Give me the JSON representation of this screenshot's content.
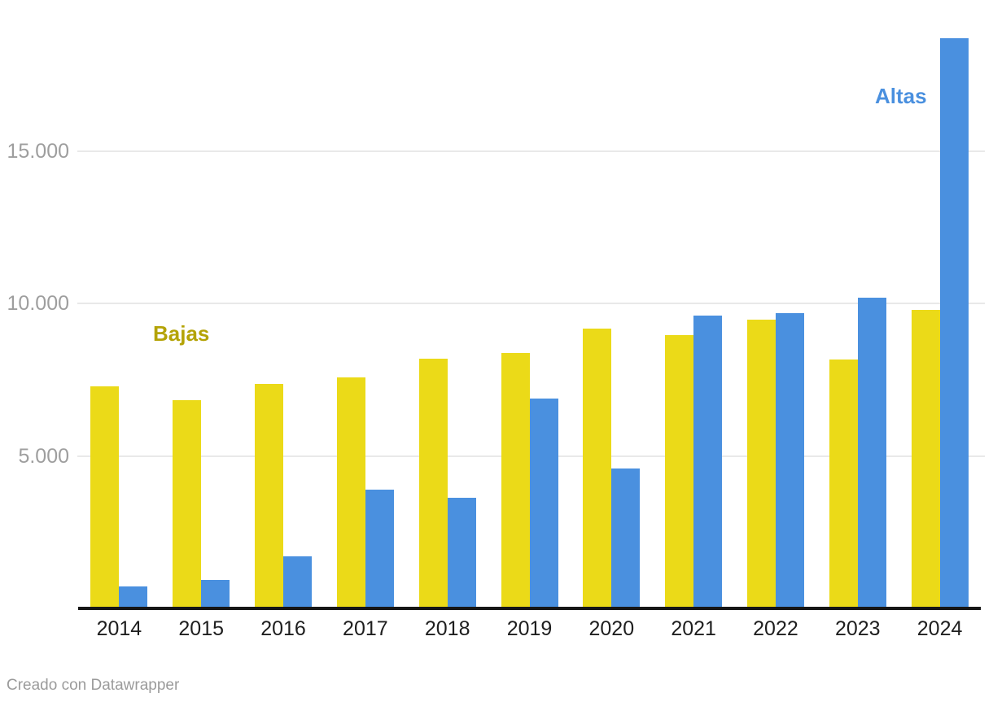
{
  "chart_data": {
    "type": "bar",
    "title": "",
    "xlabel": "",
    "ylabel": "",
    "categories": [
      "2014",
      "2015",
      "2016",
      "2017",
      "2018",
      "2019",
      "2020",
      "2021",
      "2022",
      "2023",
      "2024"
    ],
    "series": [
      {
        "name": "Bajas",
        "color": "#ebda18",
        "label_color": "#b4a306",
        "values": [
          7300,
          6840,
          7380,
          7570,
          8200,
          8390,
          9170,
          8970,
          9480,
          8160,
          9790
        ]
      },
      {
        "name": "Altas",
        "color": "#4a90df",
        "label_color": "#4a90df",
        "values": [
          720,
          940,
          1700,
          3900,
          3620,
          6890,
          4590,
          9620,
          9700,
          10200,
          18700
        ]
      }
    ],
    "ylim": [
      0,
      20000
    ],
    "yticks": [
      {
        "value": 5000,
        "label": "5.000"
      },
      {
        "value": 10000,
        "label": "10.000"
      },
      {
        "value": 15000,
        "label": "15.000"
      }
    ],
    "grid": true,
    "legend_position": "direct-annotations-next-to-bars"
  },
  "colors": {
    "background": "#ffffff",
    "gridline": "#e9e9e9",
    "axis_line": "#161616",
    "tick_text": "#9e9e9e",
    "category_text": "#1e1e1e",
    "credit_text": "#9b9b9b"
  },
  "footer": {
    "credit": "Creado con Datawrapper"
  }
}
